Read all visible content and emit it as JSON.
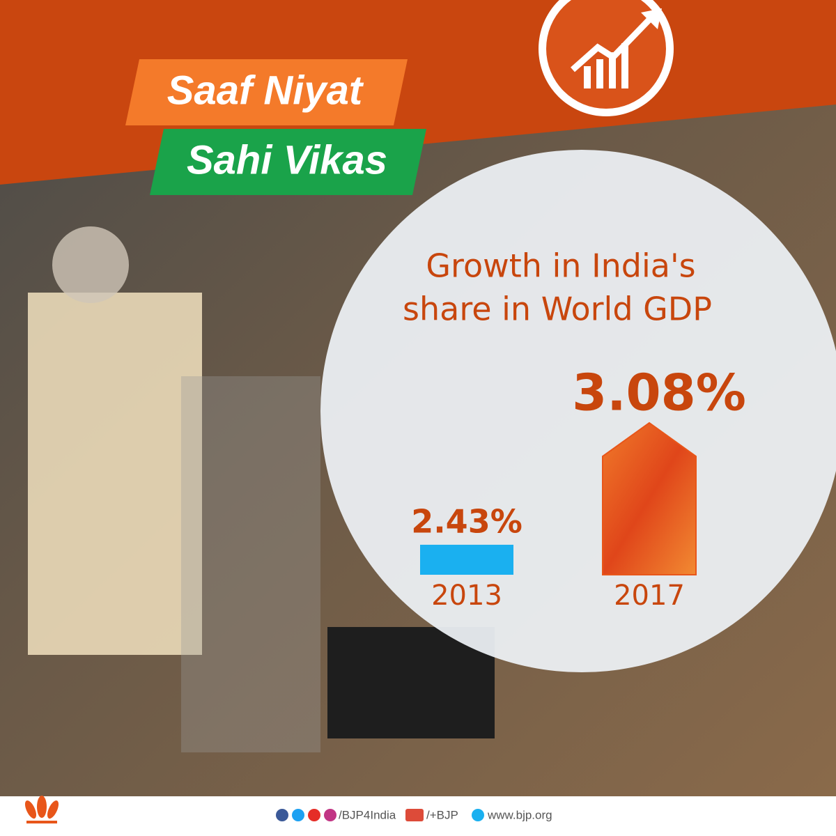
{
  "header": {
    "line1": "Saaf Niyat",
    "line2": "Sahi Vikas"
  },
  "chart_data": {
    "type": "bar",
    "title": [
      "Growth in India's",
      "share in World GDP"
    ],
    "categories": [
      "2013",
      "2017"
    ],
    "values": [
      2.43,
      3.08
    ],
    "value_labels": [
      "2.43%",
      "3.08%"
    ],
    "colors": [
      "#1ab0f0",
      "#e8561a"
    ],
    "ylim": [
      2.27,
      3.08
    ]
  },
  "footer": {
    "handle": "/BJP4India",
    "gplus": "/+BJP",
    "website": "www.bjp.org"
  }
}
